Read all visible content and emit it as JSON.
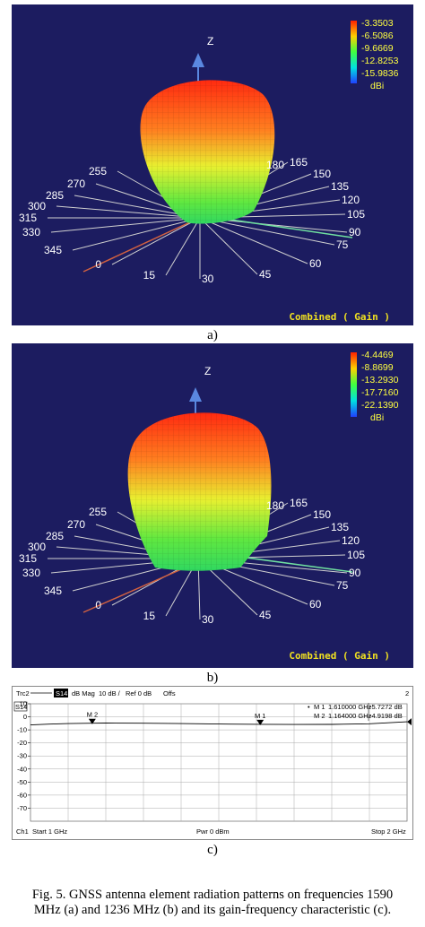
{
  "panel_a": {
    "legend": [
      "-3.3503",
      "-6.5086",
      "-9.6669",
      "-12.8253",
      "-15.9836"
    ],
    "unit": "dBi",
    "axis_label": "Z",
    "footer": "Combined ( Gain )",
    "angles": [
      "0",
      "15",
      "30",
      "45",
      "60",
      "75",
      "90",
      "105",
      "120",
      "135",
      "150",
      "165",
      "180",
      "255",
      "270",
      "285",
      "300",
      "315",
      "330",
      "345"
    ],
    "sublabel": "a)"
  },
  "panel_b": {
    "legend": [
      "-4.4469",
      "-8.8699",
      "-13.2930",
      "-17.7160",
      "-22.1390"
    ],
    "unit": "dBi",
    "axis_label": "Z",
    "footer": "Combined ( Gain )",
    "angles": [
      "0",
      "15",
      "30",
      "45",
      "60",
      "75",
      "90",
      "105",
      "120",
      "135",
      "150",
      "165",
      "180",
      "255",
      "270",
      "285",
      "300",
      "315",
      "330",
      "345"
    ],
    "sublabel": "b)"
  },
  "chart_data": {
    "type": "line",
    "header": {
      "trace": "Trc2",
      "param": "S14",
      "format": "dB Mag",
      "scale": "10 dB /",
      "ref": "Ref 0 dB",
      "offs": "Offs",
      "channel_num": "2"
    },
    "trace_tag": "S14",
    "y_ticks": [
      "10",
      "0",
      "-10",
      "-20",
      "-30",
      "-40",
      "-50",
      "-60",
      "-70"
    ],
    "ylim": [
      -80,
      10
    ],
    "xlim_ghz": [
      1,
      2
    ],
    "markers": [
      {
        "name": "M1",
        "freq": "1.610000 GHz",
        "value": "-5.7272 dB",
        "x_ghz": 1.61,
        "y_db": -5.7272,
        "bullet": "•"
      },
      {
        "name": "M2",
        "freq": "1.164000 GHz",
        "value": "-4.9198 dB",
        "x_ghz": 1.164,
        "y_db": -4.9198,
        "bullet": ""
      }
    ],
    "series": [
      {
        "x_ghz": [
          1.0,
          1.05,
          1.1,
          1.164,
          1.2,
          1.3,
          1.4,
          1.5,
          1.61,
          1.7,
          1.8,
          1.9,
          2.0
        ],
        "y_db": [
          -6.2,
          -5.6,
          -5.2,
          -4.9,
          -4.8,
          -4.9,
          -5.2,
          -5.5,
          -5.7,
          -5.9,
          -5.8,
          -5.3,
          -3.8
        ]
      }
    ],
    "footer": {
      "channel": "Ch1",
      "start": "Start  1 GHz",
      "power": "Pwr  0 dBm",
      "stop": "Stop  2 GHz"
    }
  },
  "sublabel_c": "c)",
  "caption": "Fig. 5. GNSS antenna element radiation patterns on frequencies 1590 MHz (a) and 1236 MHz (b) and its gain-frequency characteristic (c).",
  "colors": {
    "background": "#1c1c60",
    "legend_text": "#ffff40",
    "footer_text": "#f0e020",
    "angle_text": "#ffffff",
    "axis_arrow": "#5a88e0",
    "x_axis": "#d06040",
    "y_axis": "#70e0a0"
  }
}
